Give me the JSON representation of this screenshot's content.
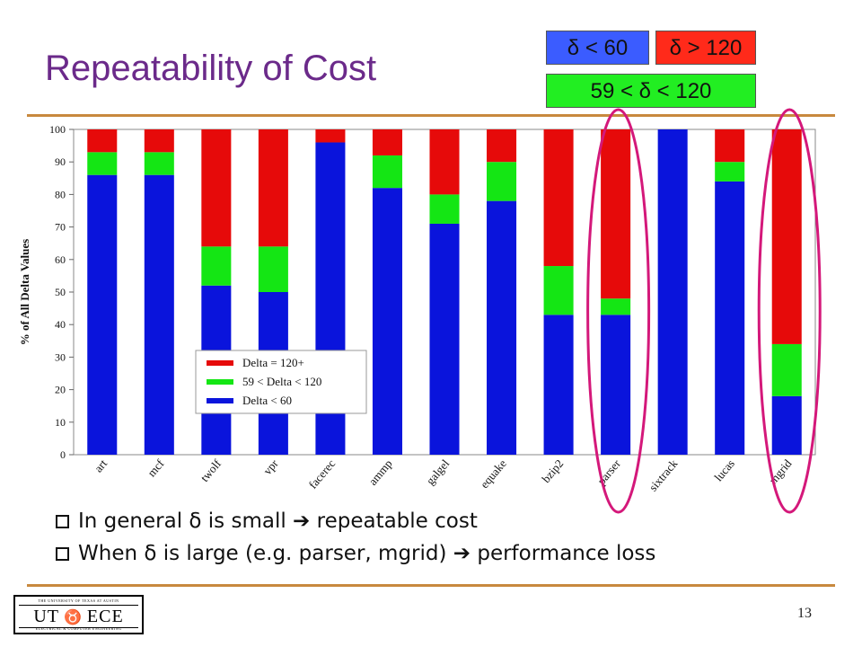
{
  "slide": {
    "title": "Repeatability of Cost",
    "key_boxes": {
      "low": "δ < 60",
      "high": "δ > 120",
      "mid": "59 < δ < 120"
    },
    "bullets": [
      "In general δ is small ➔ repeatable cost",
      "When δ is large (e.g. parser, mgrid) ➔ performance loss"
    ],
    "logo": {
      "top": "THE UNIVERSITY OF TEXAS AT AUSTIN",
      "left": "UT",
      "right": "ECE",
      "bottom": "ELECTRICAL & COMPUTER ENGINEERING"
    },
    "page_number": "13"
  },
  "colors": {
    "title": "#6b2a8a",
    "blue": "#0a14dc",
    "green": "#14e614",
    "red": "#e60a0a",
    "highlight_ellipse": "#d4187a",
    "rule": "#c8893e"
  },
  "chart_data": {
    "type": "bar",
    "stacked": true,
    "categories": [
      "art",
      "mcf",
      "twolf",
      "vpr",
      "facerec",
      "ammp",
      "galgel",
      "equake",
      "bzip2",
      "parser",
      "sixtrack",
      "lucas",
      "mgrid"
    ],
    "series": [
      {
        "name": "Delta < 60",
        "color": "#0a14dc",
        "values": [
          86,
          86,
          52,
          50,
          96,
          82,
          71,
          78,
          43,
          43,
          100,
          84,
          18
        ]
      },
      {
        "name": "59 < Delta < 120",
        "color": "#14e614",
        "values": [
          7,
          7,
          12,
          14,
          0,
          10,
          9,
          12,
          15,
          5,
          0,
          6,
          16
        ]
      },
      {
        "name": "Delta = 120+",
        "color": "#e60a0a",
        "values": [
          7,
          7,
          36,
          36,
          4,
          8,
          20,
          10,
          42,
          52,
          0,
          10,
          66
        ]
      }
    ],
    "legend_order": [
      "Delta = 120+",
      "59 < Delta < 120",
      "Delta < 60"
    ],
    "legend_position": "lower-left",
    "highlighted_categories": [
      "parser",
      "mgrid"
    ],
    "ylabel": "% of All Delta Values",
    "ylim": [
      0,
      100
    ],
    "yticks": [
      "0",
      "10",
      "20",
      "30",
      "40",
      "50",
      "60",
      "70",
      "80",
      "90",
      "100"
    ],
    "grid": false
  }
}
